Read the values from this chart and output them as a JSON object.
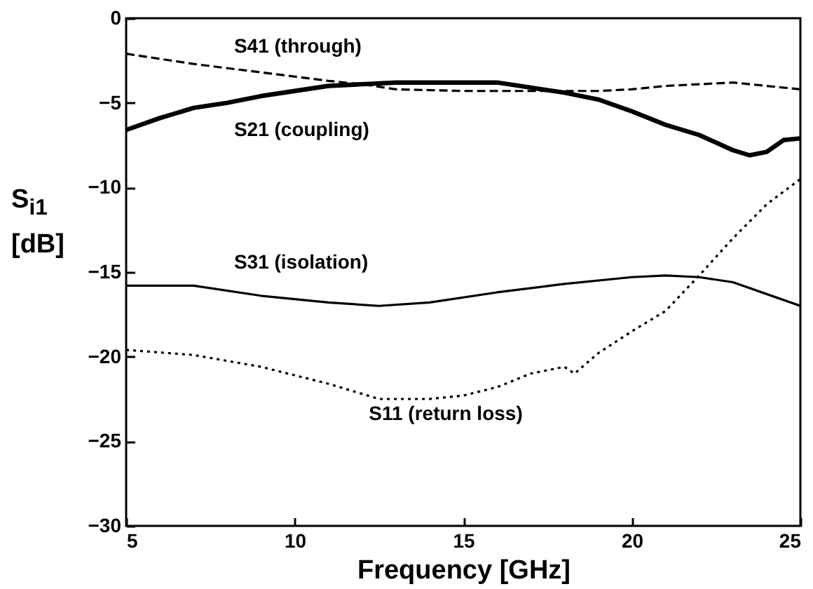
{
  "chart_data": {
    "type": "line",
    "xlabel": "Frequency [GHz]",
    "ylabel": "S$_{i1}$ [dB]",
    "xlim": [
      5,
      25
    ],
    "xticks": [
      5,
      10,
      15,
      20,
      25
    ],
    "ylim": [
      -30,
      0
    ],
    "yticks": [
      -30,
      -25,
      -20,
      -15,
      -10,
      -5,
      0
    ],
    "series": [
      {
        "name": "S41 (through)",
        "color": "#000000",
        "line_style": "dashed",
        "x": [
          5,
          7,
          9,
          11,
          12,
          13,
          15,
          17,
          19,
          20,
          21,
          23,
          24,
          25
        ],
        "values": [
          -2.1,
          -2.7,
          -3.2,
          -3.7,
          -3.9,
          -4.2,
          -4.3,
          -4.3,
          -4.3,
          -4.2,
          -4.0,
          -3.8,
          -4.0,
          -4.2
        ]
      },
      {
        "name": "S21 (coupling)",
        "color": "#000000",
        "line_style": "solid",
        "x": [
          5,
          6,
          7,
          8,
          9,
          10,
          11,
          12,
          13,
          14,
          15,
          16,
          17,
          18,
          19,
          20,
          21,
          22,
          23,
          23.5,
          24,
          24.5,
          25
        ],
        "values": [
          -6.6,
          -5.9,
          -5.3,
          -5.0,
          -4.6,
          -4.3,
          -4.0,
          -3.9,
          -3.8,
          -3.8,
          -3.8,
          -3.8,
          -4.1,
          -4.4,
          -4.8,
          -5.5,
          -6.3,
          -6.9,
          -7.8,
          -8.1,
          -7.9,
          -7.2,
          -7.1
        ]
      },
      {
        "name": "S31 (isolation)",
        "color": "#000000",
        "line_style": "solid",
        "x": [
          5,
          7,
          9,
          11,
          12.5,
          14,
          16,
          18,
          20,
          21,
          22,
          23,
          24,
          25
        ],
        "values": [
          -15.8,
          -15.8,
          -16.4,
          -16.8,
          -17.0,
          -16.8,
          -16.2,
          -15.7,
          -15.3,
          -15.2,
          -15.3,
          -15.6,
          -16.3,
          -17.0
        ]
      },
      {
        "name": "S11 (return loss)",
        "color": "#000000",
        "line_style": "dotted",
        "x": [
          5,
          7,
          9,
          11,
          12.5,
          14,
          15,
          16,
          17,
          18,
          18.3,
          19,
          20,
          21,
          22,
          23,
          24,
          25
        ],
        "values": [
          -19.6,
          -19.9,
          -20.6,
          -21.6,
          -22.5,
          -22.5,
          -22.3,
          -21.8,
          -21.0,
          -20.6,
          -21.0,
          -19.8,
          -18.5,
          -17.3,
          -15.2,
          -13.0,
          -11.0,
          -9.5
        ]
      }
    ]
  }
}
